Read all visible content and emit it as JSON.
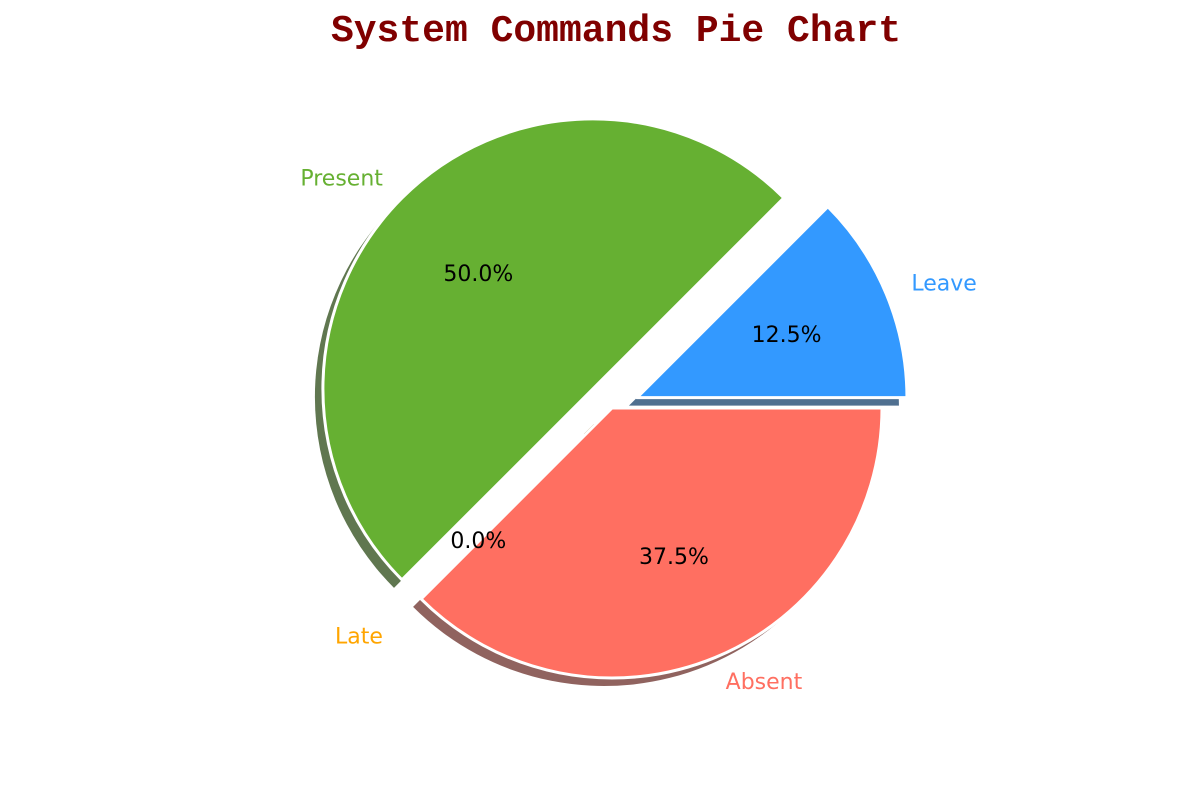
{
  "chart_data": {
    "type": "pie",
    "title": "System Commands Pie Chart",
    "slices": [
      {
        "label": "Leave",
        "value": 12.5,
        "pct_label": "12.5%",
        "color": "#3399FF",
        "explode": 0.1
      },
      {
        "label": "Present",
        "value": 50.0,
        "pct_label": "50.0%",
        "color": "#66B032",
        "explode": 0.1
      },
      {
        "label": "Late",
        "value": 0.0,
        "pct_label": "0.0%",
        "color": "#FFA500",
        "explode": 0.1
      },
      {
        "label": "Absent",
        "value": 37.5,
        "pct_label": "37.5%",
        "color": "#FF6F61",
        "explode": 0.0
      }
    ],
    "start_angle_deg": 0,
    "shadow": true,
    "legend": "none"
  }
}
